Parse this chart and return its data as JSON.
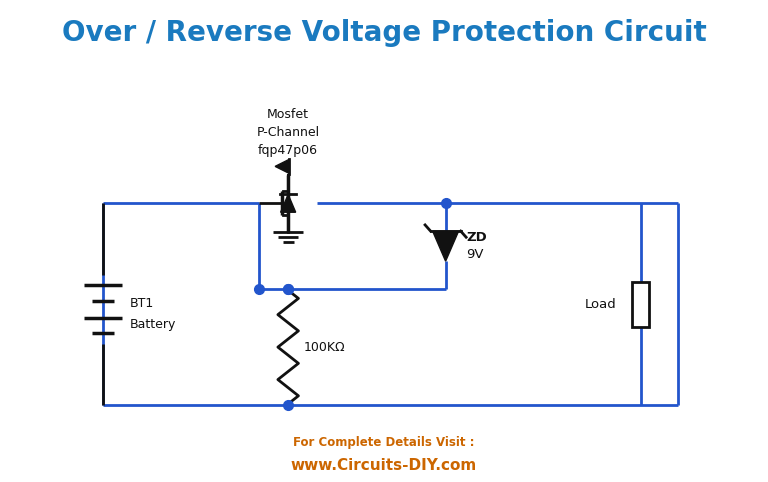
{
  "title": "Over / Reverse Voltage Protection Circuit",
  "title_color": "#1a7abf",
  "title_fontsize": 20,
  "bg_color": "#ffffff",
  "wire_color": "#2255cc",
  "component_color": "#111111",
  "footer_line1": "For Complete Details Visit :",
  "footer_line2": "www.Circuits-DIY.com",
  "footer_color": "#cc6600",
  "mosfet_label1": "Mosfet",
  "mosfet_label2": "P-Channel",
  "mosfet_label3": "fqp47p06",
  "zd_label1": "ZD",
  "zd_label2": "9V",
  "res_label": "100KΩ",
  "bat_label1": "BT1",
  "bat_label2": "Battery",
  "load_label": "Load",
  "xlim": [
    0,
    10
  ],
  "ylim": [
    0,
    7
  ]
}
